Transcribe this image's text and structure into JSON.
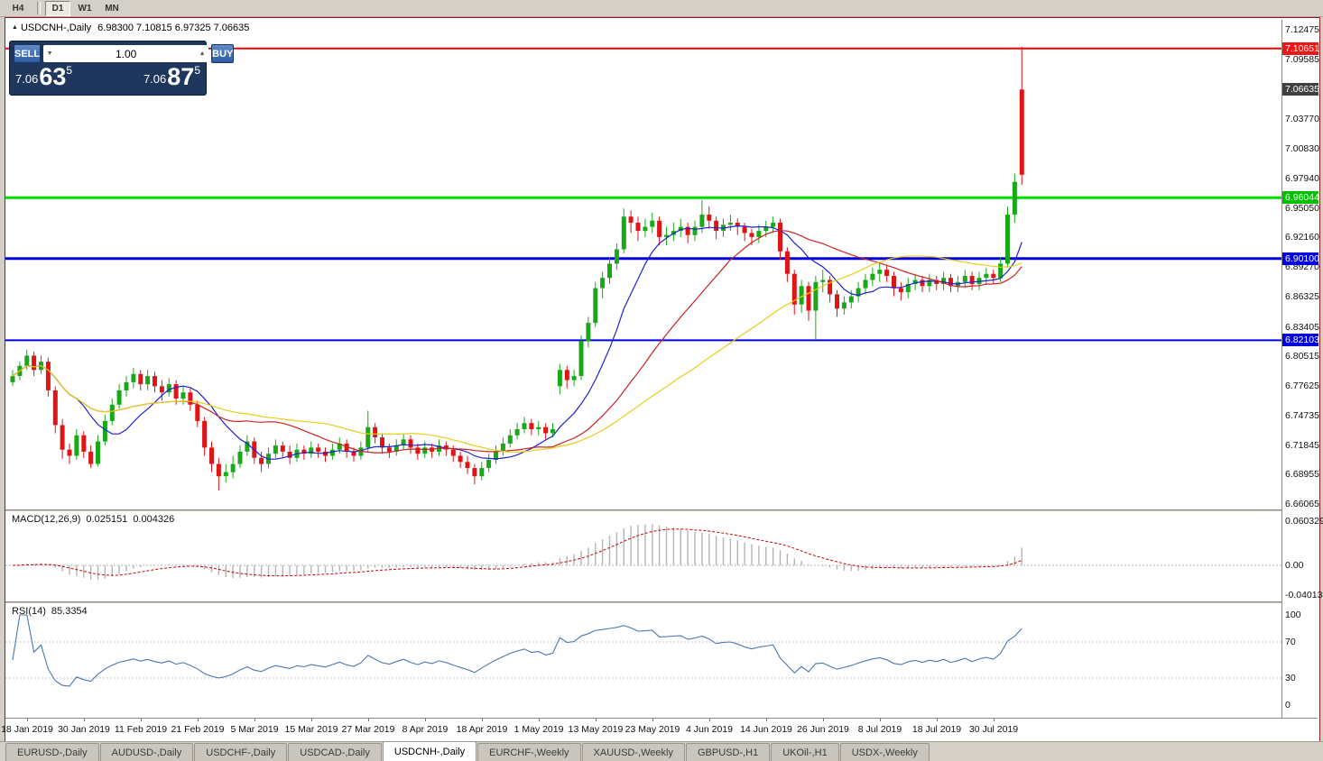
{
  "toolbar": {
    "timeframes": [
      "H4",
      "D1",
      "W1",
      "MN"
    ],
    "active": "D1"
  },
  "icons": {
    "expand_icon": "▲",
    "volume_down_icon": "▼",
    "volume_up_icon": "▲"
  },
  "chart": {
    "symbol_title": "USDCNH-,Daily",
    "ohlc_text": "6.98300 7.10815 6.97325 7.06635",
    "trade_panel": {
      "sell_label": "SELL",
      "buy_label": "BUY",
      "volume": "1.00",
      "sell_price": {
        "prefix": "7.06",
        "big": "63",
        "sup": "5"
      },
      "buy_price": {
        "prefix": "7.06",
        "big": "87",
        "sup": "5"
      }
    }
  },
  "chart_data": {
    "type": "candlestick",
    "symbol": "USDCNH",
    "timeframe": "Daily",
    "ohlc_current": {
      "open": 6.983,
      "high": 7.10815,
      "low": 6.97325,
      "close": 7.06635
    },
    "y_range": {
      "min": 6.6555,
      "max": 7.1345
    },
    "price_axis_labels": [
      "7.12475",
      "7.09585",
      "7.03770",
      "7.00830",
      "6.97940",
      "6.95050",
      "6.92160",
      "6.89270",
      "6.86325",
      "6.83405",
      "6.80515",
      "6.77625",
      "6.74735",
      "6.71845",
      "6.68955",
      "6.66065"
    ],
    "h_lines": [
      {
        "text": "7.10651",
        "value": 7.10651,
        "bg": "#f01414",
        "line": 2,
        "line_color": "#ff0000"
      },
      {
        "text": "7.06635",
        "value": 7.06635,
        "bg": "#404040",
        "line": 0,
        "line_color": ""
      },
      {
        "text": "6.96044",
        "value": 6.96044,
        "bg": "#00c000",
        "line": 3,
        "line_color": "#00dd00"
      },
      {
        "text": "6.90100",
        "value": 6.901,
        "bg": "#0000dc",
        "line": 3,
        "line_color": "#0000dc"
      },
      {
        "text": "6.82103",
        "value": 6.82103,
        "bg": "#0000dc",
        "line": 2,
        "line_color": "#0000dc"
      }
    ],
    "moving_averages": [
      {
        "period": 10,
        "color": "#2222cc"
      },
      {
        "period": 25,
        "color": "#cc2222"
      },
      {
        "period": 45,
        "color": "#e8cd1a"
      }
    ],
    "colors": {
      "bull": "#18a818",
      "bear": "#e01414",
      "macd_hist": "#b4b4b4",
      "macd_signal": "#cc0000",
      "rsi": "#4878b4",
      "level_dots": "#c8c8c8",
      "zero_dots": "#b0b0b0"
    },
    "date_labels": [
      {
        "text": "18 Jan 2019",
        "i": 2
      },
      {
        "text": "30 Jan 2019",
        "i": 10
      },
      {
        "text": "11 Feb 2019",
        "i": 18
      },
      {
        "text": "21 Feb 2019",
        "i": 26
      },
      {
        "text": "5 Mar 2019",
        "i": 34
      },
      {
        "text": "15 Mar 2019",
        "i": 42
      },
      {
        "text": "27 Mar 2019",
        "i": 50
      },
      {
        "text": "8 Apr 2019",
        "i": 58
      },
      {
        "text": "18 Apr 2019",
        "i": 66
      },
      {
        "text": "1 May 2019",
        "i": 74
      },
      {
        "text": "13 May 2019",
        "i": 82
      },
      {
        "text": "23 May 2019",
        "i": 90
      },
      {
        "text": "4 Jun 2019",
        "i": 98
      },
      {
        "text": "14 Jun 2019",
        "i": 106
      },
      {
        "text": "26 Jun 2019",
        "i": 114
      },
      {
        "text": "8 Jul 2019",
        "i": 122
      },
      {
        "text": "18 Jul 2019",
        "i": 130
      },
      {
        "text": "30 Jul 2019",
        "i": 138
      }
    ],
    "indicators": {
      "macd": {
        "label": "MACD(12,26,9)",
        "value_main": "0.025151",
        "value_signal": "0.004326",
        "params": [
          12,
          26,
          9
        ],
        "range": {
          "min": -0.0492,
          "max": 0.0738
        },
        "axis_labels": [
          {
            "text": "0.060329",
            "value": 0.060329
          },
          {
            "text": "0.00",
            "value": 0
          },
          {
            "text": "-0.040135",
            "value": -0.040135
          }
        ]
      },
      "rsi": {
        "label": "RSI(14)",
        "value": "85.3354",
        "period": 14,
        "levels": [
          70,
          30
        ],
        "range": {
          "min": -14,
          "max": 113
        },
        "axis_labels": [
          {
            "text": "100",
            "value": 100
          },
          {
            "text": "70",
            "value": 70
          },
          {
            "text": "30",
            "value": 30
          },
          {
            "text": "0",
            "value": 0
          }
        ]
      }
    },
    "candles": [
      [
        6.78,
        6.792,
        6.776,
        6.786
      ],
      [
        6.786,
        6.8,
        6.782,
        6.796
      ],
      [
        6.796,
        6.812,
        6.792,
        6.806
      ],
      [
        6.806,
        6.81,
        6.786,
        6.792
      ],
      [
        6.792,
        6.806,
        6.788,
        6.8
      ],
      [
        6.8,
        6.804,
        6.766,
        6.772
      ],
      [
        6.772,
        6.776,
        6.73,
        6.738
      ],
      [
        6.738,
        6.744,
        6.705,
        6.714
      ],
      [
        6.714,
        6.72,
        6.7,
        6.708
      ],
      [
        6.708,
        6.734,
        6.704,
        6.728
      ],
      [
        6.728,
        6.732,
        6.706,
        6.712
      ],
      [
        6.712,
        6.718,
        6.696,
        6.7
      ],
      [
        6.7,
        6.728,
        6.698,
        6.722
      ],
      [
        6.722,
        6.748,
        6.718,
        6.742
      ],
      [
        6.742,
        6.764,
        6.738,
        6.758
      ],
      [
        6.758,
        6.778,
        6.754,
        6.772
      ],
      [
        6.772,
        6.786,
        6.766,
        6.78
      ],
      [
        6.78,
        6.794,
        6.774,
        6.788
      ],
      [
        6.788,
        6.792,
        6.772,
        6.778
      ],
      [
        6.778,
        6.792,
        6.772,
        6.786
      ],
      [
        6.786,
        6.79,
        6.77,
        6.776
      ],
      [
        6.776,
        6.782,
        6.762,
        6.77
      ],
      [
        6.77,
        6.784,
        6.766,
        6.778
      ],
      [
        6.778,
        6.782,
        6.758,
        6.764
      ],
      [
        6.764,
        6.776,
        6.758,
        6.77
      ],
      [
        6.77,
        6.774,
        6.752,
        6.758
      ],
      [
        6.758,
        6.762,
        6.736,
        6.742
      ],
      [
        6.742,
        6.746,
        6.708,
        6.716
      ],
      [
        6.716,
        6.722,
        6.692,
        6.7
      ],
      [
        6.7,
        6.706,
        6.674,
        6.688
      ],
      [
        6.688,
        6.7,
        6.682,
        6.692
      ],
      [
        6.692,
        6.708,
        6.686,
        6.7
      ],
      [
        6.7,
        6.718,
        6.696,
        6.712
      ],
      [
        6.712,
        6.728,
        6.708,
        6.722
      ],
      [
        6.722,
        6.726,
        6.7,
        6.706
      ],
      [
        6.706,
        6.712,
        6.692,
        6.7
      ],
      [
        6.7,
        6.716,
        6.696,
        6.71
      ],
      [
        6.71,
        6.724,
        6.706,
        6.718
      ],
      [
        6.718,
        6.722,
        6.706,
        6.712
      ],
      [
        6.712,
        6.718,
        6.7,
        6.706
      ],
      [
        6.706,
        6.72,
        6.702,
        6.714
      ],
      [
        6.714,
        6.718,
        6.704,
        6.71
      ],
      [
        6.71,
        6.722,
        6.706,
        6.716
      ],
      [
        6.716,
        6.72,
        6.706,
        6.712
      ],
      [
        6.712,
        6.716,
        6.702,
        6.708
      ],
      [
        6.708,
        6.72,
        6.704,
        6.714
      ],
      [
        6.714,
        6.726,
        6.71,
        6.72
      ],
      [
        6.72,
        6.724,
        6.706,
        6.712
      ],
      [
        6.712,
        6.716,
        6.702,
        6.708
      ],
      [
        6.708,
        6.722,
        6.704,
        6.716
      ],
      [
        6.716,
        6.752,
        6.712,
        6.736
      ],
      [
        6.736,
        6.74,
        6.72,
        6.726
      ],
      [
        6.726,
        6.73,
        6.71,
        6.716
      ],
      [
        6.716,
        6.72,
        6.706,
        6.712
      ],
      [
        6.712,
        6.724,
        6.708,
        6.718
      ],
      [
        6.718,
        6.73,
        6.714,
        6.724
      ],
      [
        6.724,
        6.728,
        6.71,
        6.716
      ],
      [
        6.716,
        6.72,
        6.704,
        6.71
      ],
      [
        6.71,
        6.722,
        6.706,
        6.716
      ],
      [
        6.716,
        6.72,
        6.706,
        6.712
      ],
      [
        6.712,
        6.724,
        6.708,
        6.718
      ],
      [
        6.718,
        6.722,
        6.708,
        6.714
      ],
      [
        6.714,
        6.718,
        6.702,
        6.708
      ],
      [
        6.708,
        6.712,
        6.696,
        6.702
      ],
      [
        6.702,
        6.708,
        6.69,
        6.696
      ],
      [
        6.696,
        6.7,
        6.68,
        6.688
      ],
      [
        6.688,
        6.702,
        6.684,
        6.696
      ],
      [
        6.696,
        6.71,
        6.692,
        6.704
      ],
      [
        6.704,
        6.718,
        6.7,
        6.712
      ],
      [
        6.712,
        6.726,
        6.708,
        6.72
      ],
      [
        6.72,
        6.734,
        6.716,
        6.728
      ],
      [
        6.728,
        6.74,
        6.724,
        6.734
      ],
      [
        6.734,
        6.746,
        6.73,
        6.74
      ],
      [
        6.74,
        6.744,
        6.728,
        6.734
      ],
      [
        6.734,
        6.742,
        6.728,
        6.736
      ],
      [
        6.736,
        6.74,
        6.724,
        6.73
      ],
      [
        6.73,
        6.74,
        6.726,
        6.734
      ],
      [
        6.776,
        6.798,
        6.768,
        6.792
      ],
      [
        6.792,
        6.796,
        6.774,
        6.782
      ],
      [
        6.782,
        6.792,
        6.776,
        6.786
      ],
      [
        6.786,
        6.826,
        6.782,
        6.82
      ],
      [
        6.82,
        6.844,
        6.814,
        6.838
      ],
      [
        6.838,
        6.878,
        6.834,
        6.872
      ],
      [
        6.872,
        6.888,
        6.862,
        6.882
      ],
      [
        6.882,
        6.902,
        6.876,
        6.896
      ],
      [
        6.896,
        6.916,
        6.89,
        6.91
      ],
      [
        6.91,
        6.95,
        6.906,
        6.942
      ],
      [
        6.942,
        6.948,
        6.926,
        6.936
      ],
      [
        6.936,
        6.942,
        6.918,
        6.928
      ],
      [
        6.928,
        6.94,
        6.922,
        6.932
      ],
      [
        6.932,
        6.946,
        6.926,
        6.938
      ],
      [
        6.938,
        6.942,
        6.914,
        6.922
      ],
      [
        6.922,
        6.932,
        6.914,
        6.924
      ],
      [
        6.924,
        6.936,
        6.918,
        6.928
      ],
      [
        6.928,
        6.94,
        6.922,
        6.932
      ],
      [
        6.932,
        6.936,
        6.916,
        6.924
      ],
      [
        6.924,
        6.938,
        6.918,
        6.932
      ],
      [
        6.932,
        6.958,
        6.926,
        6.944
      ],
      [
        6.944,
        6.952,
        6.93,
        6.938
      ],
      [
        6.938,
        6.942,
        6.92,
        6.928
      ],
      [
        6.928,
        6.94,
        6.922,
        6.934
      ],
      [
        6.934,
        6.944,
        6.928,
        6.936
      ],
      [
        6.936,
        6.94,
        6.924,
        6.932
      ],
      [
        6.932,
        6.936,
        6.918,
        6.926
      ],
      [
        6.926,
        6.93,
        6.914,
        6.922
      ],
      [
        6.922,
        6.934,
        6.916,
        6.928
      ],
      [
        6.928,
        6.938,
        6.922,
        6.932
      ],
      [
        6.932,
        6.942,
        6.926,
        6.936
      ],
      [
        6.936,
        6.94,
        6.9,
        6.908
      ],
      [
        6.908,
        6.912,
        6.878,
        6.886
      ],
      [
        6.886,
        6.89,
        6.846,
        6.856
      ],
      [
        6.856,
        6.88,
        6.848,
        6.874
      ],
      [
        6.874,
        6.878,
        6.84,
        6.85
      ],
      [
        6.85,
        6.884,
        6.821,
        6.878
      ],
      [
        6.878,
        6.89,
        6.868,
        6.88
      ],
      [
        6.88,
        6.884,
        6.858,
        6.866
      ],
      [
        6.866,
        6.87,
        6.844,
        6.852
      ],
      [
        6.852,
        6.864,
        6.846,
        6.858
      ],
      [
        6.858,
        6.87,
        6.852,
        6.864
      ],
      [
        6.864,
        6.878,
        6.858,
        6.872
      ],
      [
        6.872,
        6.886,
        6.866,
        6.88
      ],
      [
        6.88,
        6.892,
        6.874,
        6.886
      ],
      [
        6.886,
        6.896,
        6.878,
        6.89
      ],
      [
        6.89,
        6.894,
        6.878,
        6.884
      ],
      [
        6.884,
        6.888,
        6.864,
        6.872
      ],
      [
        6.872,
        6.878,
        6.86,
        6.868
      ],
      [
        6.868,
        6.882,
        6.862,
        6.876
      ],
      [
        6.876,
        6.886,
        6.87,
        6.88
      ],
      [
        6.88,
        6.884,
        6.868,
        6.874
      ],
      [
        6.874,
        6.886,
        6.868,
        6.88
      ],
      [
        6.88,
        6.884,
        6.87,
        6.876
      ],
      [
        6.876,
        6.888,
        6.87,
        6.882
      ],
      [
        6.882,
        6.886,
        6.868,
        6.874
      ],
      [
        6.874,
        6.884,
        6.868,
        6.878
      ],
      [
        6.878,
        6.89,
        6.872,
        6.884
      ],
      [
        6.884,
        6.888,
        6.87,
        6.876
      ],
      [
        6.876,
        6.888,
        6.87,
        6.882
      ],
      [
        6.882,
        6.892,
        6.876,
        6.886
      ],
      [
        6.886,
        6.89,
        6.876,
        6.882
      ],
      [
        6.882,
        6.902,
        6.878,
        6.896
      ],
      [
        6.896,
        6.952,
        6.892,
        6.944
      ],
      [
        6.944,
        6.984,
        6.936,
        6.976
      ],
      [
        6.983,
        7.10815,
        6.97325,
        7.06635,
        "r"
      ]
    ]
  },
  "tabs": {
    "items": [
      {
        "label": "EURUSD-,Daily",
        "active": false
      },
      {
        "label": "AUDUSD-,Daily",
        "active": false
      },
      {
        "label": "USDCHF-,Daily",
        "active": false
      },
      {
        "label": "USDCAD-,Daily",
        "active": false
      },
      {
        "label": "USDCNH-,Daily",
        "active": true
      },
      {
        "label": "EURCHF-,Weekly",
        "active": false
      },
      {
        "label": "XAUUSD-,Weekly",
        "active": false
      },
      {
        "label": "GBPUSD-,H1",
        "active": false
      },
      {
        "label": "UKOil-,H1",
        "active": false
      },
      {
        "label": "USDX-,Weekly",
        "active": false
      }
    ]
  }
}
